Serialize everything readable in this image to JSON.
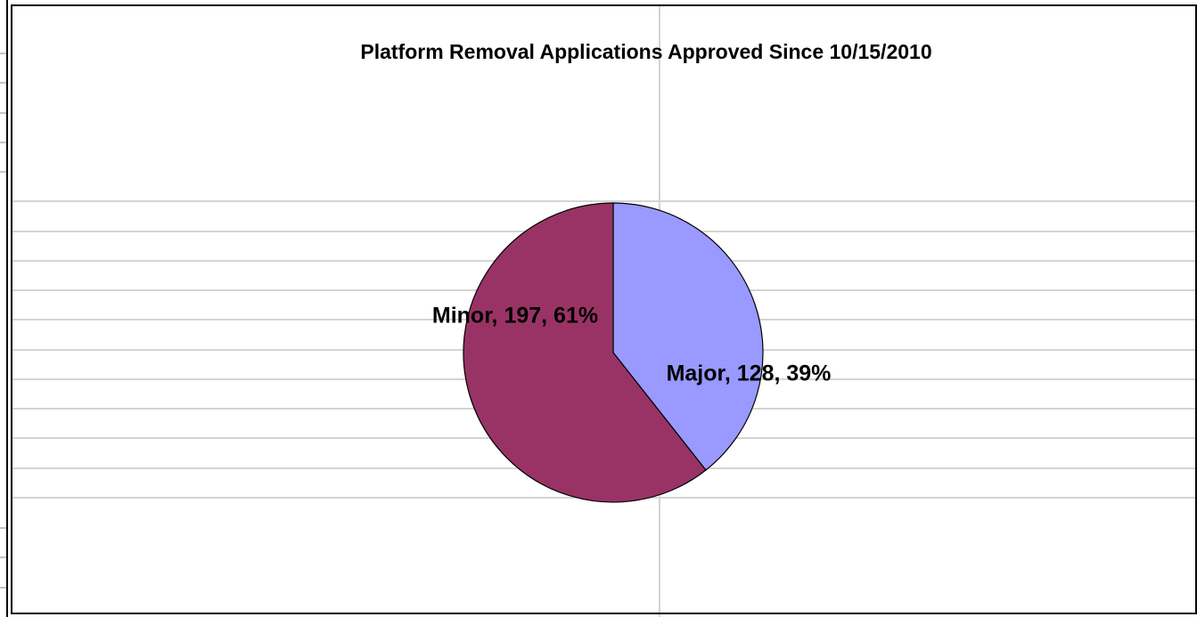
{
  "chart_data": {
    "type": "pie",
    "title": "Platform Removal Applications Approved Since 10/15/2010",
    "categories": [
      "Major",
      "Minor"
    ],
    "values": [
      128,
      197
    ],
    "value_labels": [
      "Major, 128, 39%",
      "Minor, 197, 61%"
    ],
    "colors": [
      "#9999ff",
      "#993366"
    ]
  }
}
